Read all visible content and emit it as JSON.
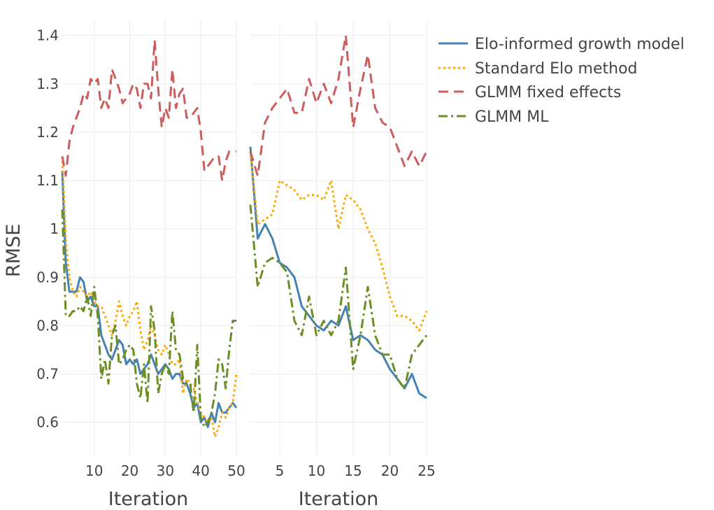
{
  "chart_data": {
    "type": "line",
    "ylabel": "RMSE",
    "ylim": [
      0.53,
      1.43
    ],
    "yticks": [
      0.6,
      0.7,
      0.8,
      0.9,
      1,
      1.1,
      1.2,
      1.3,
      1.4
    ],
    "ytick_labels": [
      "0.6",
      "0.7",
      "0.8",
      "0.9",
      "1",
      "1.1",
      "1.2",
      "1.3",
      "1.4"
    ],
    "legend": [
      {
        "name": "Elo-informed growth model",
        "color": "#4682b4",
        "dash": "solid"
      },
      {
        "name": "Standard Elo method",
        "color": "#ffa500",
        "dash": "dot"
      },
      {
        "name": "GLMM fixed effects",
        "color": "#cd5c5c",
        "dash": "dash"
      },
      {
        "name": "GLMM ML",
        "color": "#6b8e23",
        "dash": "dashdot"
      }
    ],
    "panels": [
      {
        "xlabel": "Iteration",
        "xlim": [
          1,
          50
        ],
        "xticks": [
          10,
          20,
          30,
          40,
          50
        ],
        "xtick_labels": [
          "10",
          "20",
          "30",
          "40",
          "50"
        ],
        "series": [
          {
            "name": "Elo-informed growth model",
            "values": [
              1.12,
              0.93,
              0.87,
              0.87,
              0.87,
              0.9,
              0.89,
              0.85,
              0.86,
              0.84,
              0.84,
              0.78,
              0.76,
              0.74,
              0.73,
              0.75,
              0.77,
              0.76,
              0.72,
              0.73,
              0.72,
              0.73,
              0.7,
              0.71,
              0.72,
              0.74,
              0.72,
              0.7,
              0.71,
              0.72,
              0.71,
              0.69,
              0.7,
              0.7,
              0.68,
              0.68,
              0.66,
              0.63,
              0.64,
              0.6,
              0.61,
              0.59,
              0.62,
              0.6,
              0.64,
              0.62,
              0.62,
              0.63,
              0.64,
              0.63
            ]
          },
          {
            "name": "Standard Elo method",
            "values": [
              1.15,
              0.98,
              0.9,
              0.87,
              0.86,
              0.88,
              0.87,
              0.86,
              0.87,
              0.85,
              0.84,
              0.84,
              0.82,
              0.8,
              0.78,
              0.81,
              0.85,
              0.82,
              0.8,
              0.82,
              0.83,
              0.85,
              0.79,
              0.75,
              0.77,
              0.8,
              0.78,
              0.75,
              0.74,
              0.76,
              0.74,
              0.72,
              0.72,
              0.73,
              0.66,
              0.69,
              0.68,
              0.67,
              0.64,
              0.62,
              0.61,
              0.6,
              0.61,
              0.57,
              0.59,
              0.62,
              0.61,
              0.63,
              0.64,
              0.7
            ]
          },
          {
            "name": "GLMM fixed effects",
            "values": [
              1.15,
              1.11,
              1.18,
              1.21,
              1.23,
              1.25,
              1.28,
              1.27,
              1.31,
              1.3,
              1.31,
              1.25,
              1.27,
              1.25,
              1.33,
              1.31,
              1.29,
              1.26,
              1.27,
              1.28,
              1.3,
              1.29,
              1.25,
              1.3,
              1.3,
              1.27,
              1.39,
              1.29,
              1.21,
              1.25,
              1.23,
              1.33,
              1.25,
              1.28,
              1.29,
              1.23,
              1.23,
              1.24,
              1.25,
              1.2,
              1.12,
              1.13,
              1.14,
              1.15,
              1.15,
              1.1,
              1.14,
              1.16,
              1.16,
              1.16
            ]
          },
          {
            "name": "GLMM ML",
            "values": [
              1.04,
              0.82,
              0.82,
              0.83,
              0.83,
              0.84,
              0.83,
              0.86,
              0.82,
              0.88,
              0.82,
              0.69,
              0.73,
              0.68,
              0.78,
              0.8,
              0.72,
              0.73,
              0.75,
              0.76,
              0.75,
              0.68,
              0.65,
              0.72,
              0.64,
              0.84,
              0.79,
              0.66,
              0.7,
              0.72,
              0.7,
              0.83,
              0.75,
              0.74,
              0.69,
              0.68,
              0.68,
              0.62,
              0.76,
              0.61,
              0.59,
              0.6,
              0.62,
              0.66,
              0.73,
              0.72,
              0.67,
              0.75,
              0.81,
              0.81
            ]
          }
        ]
      },
      {
        "xlabel": "Iteration",
        "xlim": [
          1,
          25
        ],
        "xticks": [
          5,
          10,
          15,
          20,
          25
        ],
        "xtick_labels": [
          "5",
          "10",
          "15",
          "20",
          "25"
        ],
        "series": [
          {
            "name": "Elo-informed growth model",
            "values": [
              1.17,
              0.98,
              1.01,
              0.98,
              0.93,
              0.92,
              0.9,
              0.84,
              0.82,
              0.8,
              0.79,
              0.81,
              0.8,
              0.84,
              0.77,
              0.78,
              0.77,
              0.75,
              0.74,
              0.71,
              0.69,
              0.67,
              0.7,
              0.66,
              0.65
            ]
          },
          {
            "name": "Standard Elo method",
            "values": [
              1.16,
              1.01,
              1.02,
              1.03,
              1.1,
              1.09,
              1.08,
              1.06,
              1.07,
              1.07,
              1.06,
              1.1,
              1.0,
              1.07,
              1.06,
              1.04,
              1.0,
              0.97,
              0.92,
              0.86,
              0.82,
              0.82,
              0.81,
              0.79,
              0.83
            ]
          },
          {
            "name": "GLMM fixed effects",
            "values": [
              1.16,
              1.11,
              1.22,
              1.25,
              1.27,
              1.29,
              1.24,
              1.24,
              1.31,
              1.26,
              1.3,
              1.26,
              1.31,
              1.4,
              1.21,
              1.29,
              1.36,
              1.25,
              1.22,
              1.21,
              1.17,
              1.13,
              1.16,
              1.13,
              1.16
            ]
          },
          {
            "name": "GLMM ML",
            "values": [
              1.05,
              0.88,
              0.93,
              0.94,
              0.93,
              0.91,
              0.81,
              0.78,
              0.86,
              0.78,
              0.81,
              0.78,
              0.81,
              0.92,
              0.71,
              0.78,
              0.88,
              0.78,
              0.74,
              0.74,
              0.69,
              0.67,
              0.74,
              0.76,
              0.78
            ]
          }
        ]
      }
    ]
  }
}
